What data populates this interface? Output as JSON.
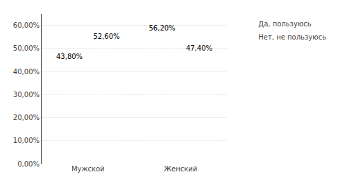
{
  "chart_data": {
    "type": "bar",
    "categories": [
      "Мужской",
      "Женский"
    ],
    "series": [
      {
        "name": "Да, пользуюсь",
        "color": "#4472C4",
        "values": [
          43.8,
          56.2
        ],
        "value_labels": [
          "43,80%",
          "56,20%"
        ]
      },
      {
        "name": "Нет, не пользуюсь",
        "color": "#C0504D",
        "values": [
          52.6,
          47.4
        ],
        "value_labels": [
          "52,60%",
          "47,40%"
        ]
      }
    ],
    "ylim": [
      0,
      65
    ],
    "yticks": [
      {
        "value": 0,
        "label": "0,00%"
      },
      {
        "value": 10,
        "label": "10,00%"
      },
      {
        "value": 20,
        "label": "20,00%"
      },
      {
        "value": 30,
        "label": "30,00%"
      },
      {
        "value": 40,
        "label": "40,00%"
      },
      {
        "value": 50,
        "label": "50,00%"
      },
      {
        "value": 60,
        "label": "60,00%"
      }
    ],
    "grid": true,
    "legend": "upper right",
    "data_labels": true
  }
}
